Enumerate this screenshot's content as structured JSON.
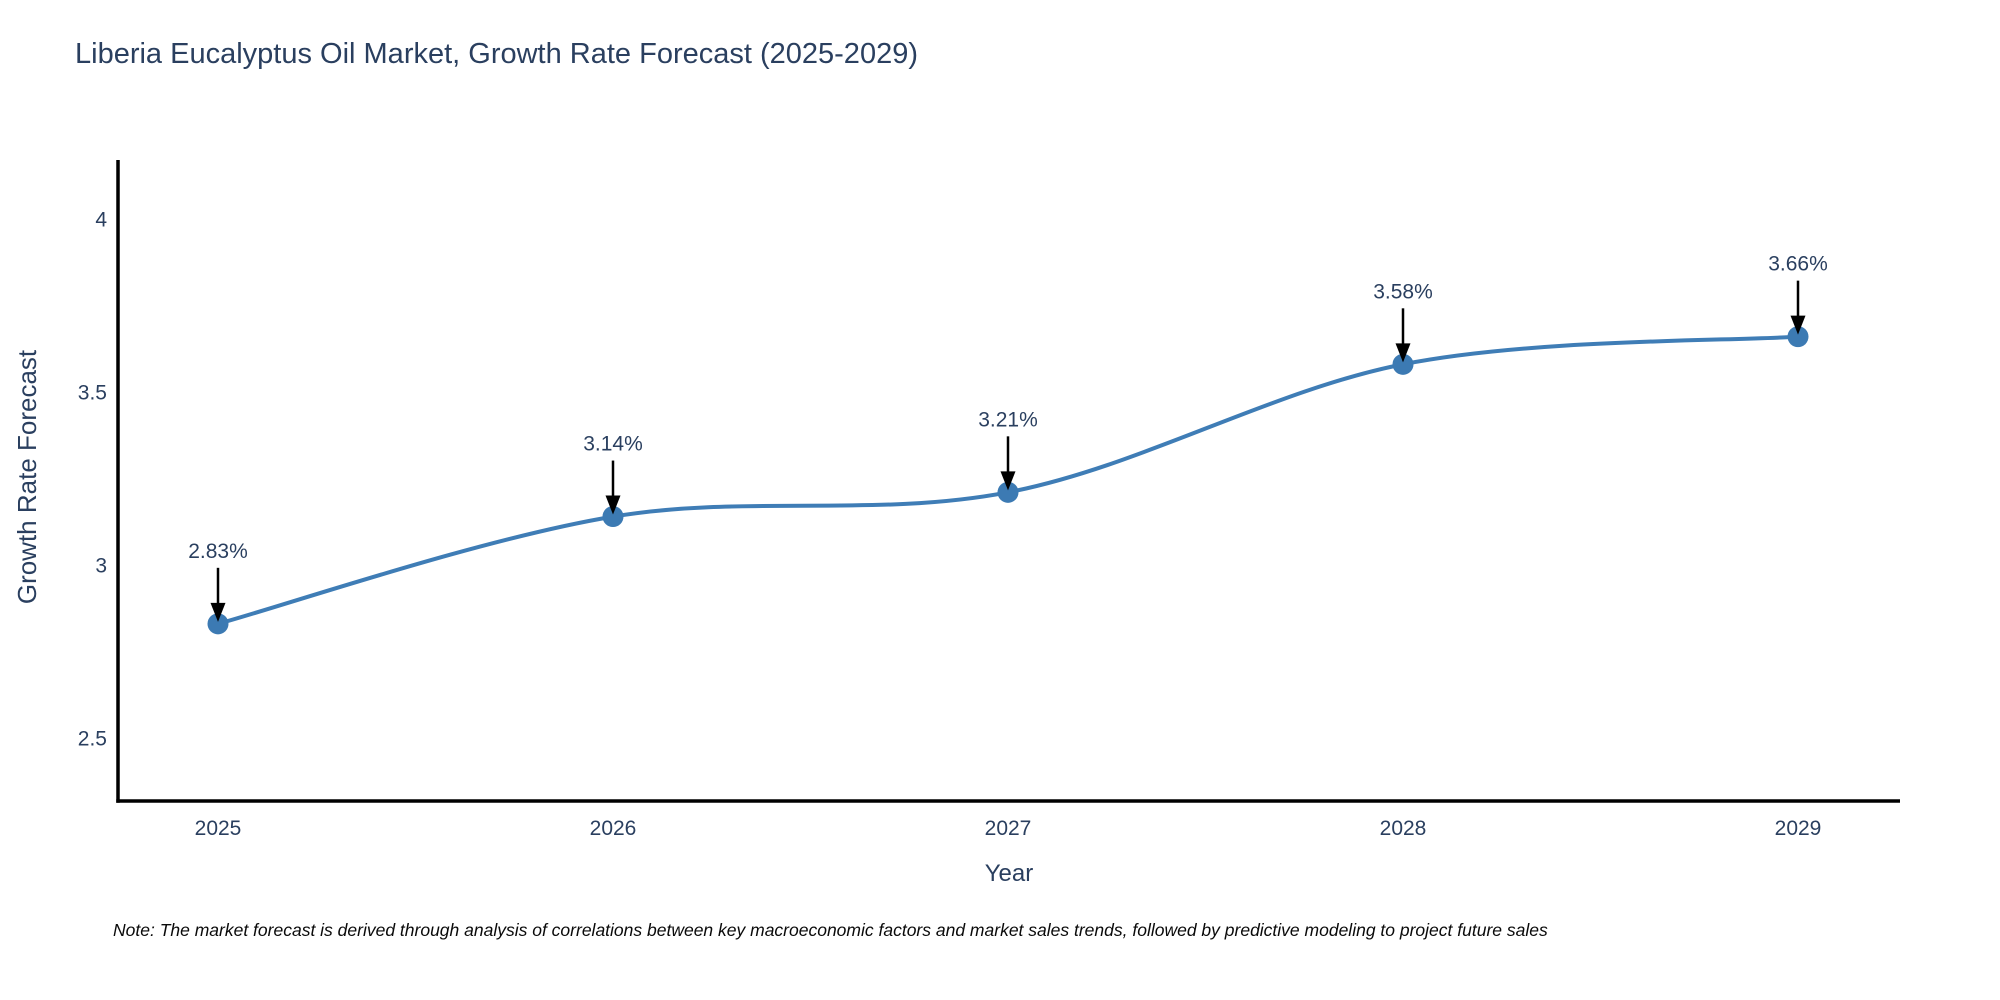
{
  "title": "Liberia Eucalyptus Oil Market, Growth Rate Forecast (2025-2029)",
  "note": "Note: The market forecast is derived through analysis of correlations between key macroeconomic factors and market sales trends, followed by predictive modeling to project future sales",
  "colors": {
    "title_text": "#2a3f5f",
    "tick_text": "#2a3f5f",
    "line": "#3f7db6",
    "marker": "#3c7ab3",
    "axis_line": "#000000",
    "annotation_arrow": "#000000",
    "background": "#ffffff"
  },
  "chart_data": {
    "type": "line",
    "title": "Liberia Eucalyptus Oil Market, Growth Rate Forecast (2025-2029)",
    "x": [
      2025,
      2026,
      2027,
      2028,
      2029
    ],
    "values": [
      2.83,
      3.14,
      3.21,
      3.58,
      3.66
    ],
    "point_labels": [
      "2.83%",
      "3.14%",
      "3.21%",
      "3.58%",
      "3.66%"
    ],
    "xlabel": "Year",
    "ylabel": "Growth Rate Forecast",
    "yticks": [
      2.5,
      3,
      3.5,
      4
    ],
    "xticks": [
      "2025",
      "2026",
      "2027",
      "2028",
      "2029"
    ],
    "ylim": [
      2.32,
      4.17
    ],
    "grid": false,
    "legend": false,
    "line_shape": "spline",
    "annotations": "arrow-down-to-point"
  }
}
